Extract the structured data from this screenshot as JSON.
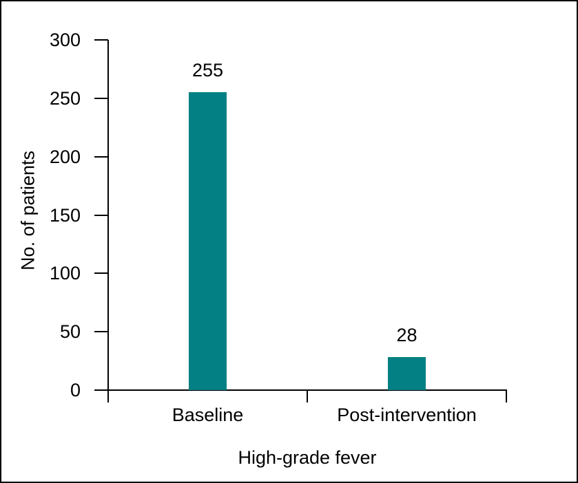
{
  "chart_data": {
    "type": "bar",
    "categories": [
      "Baseline",
      "Post-intervention"
    ],
    "values": [
      255,
      28
    ],
    "data_labels": [
      "255",
      "28"
    ],
    "title": "",
    "xlabel": "High-grade fever",
    "ylabel": "No. of patients",
    "ylim": [
      0,
      300
    ],
    "yticks": [
      0,
      50,
      100,
      150,
      200,
      250,
      300
    ],
    "bar_color": "#028083",
    "axis_color": "#000000",
    "text_color": "#000000",
    "grid": false,
    "legend": "none"
  }
}
